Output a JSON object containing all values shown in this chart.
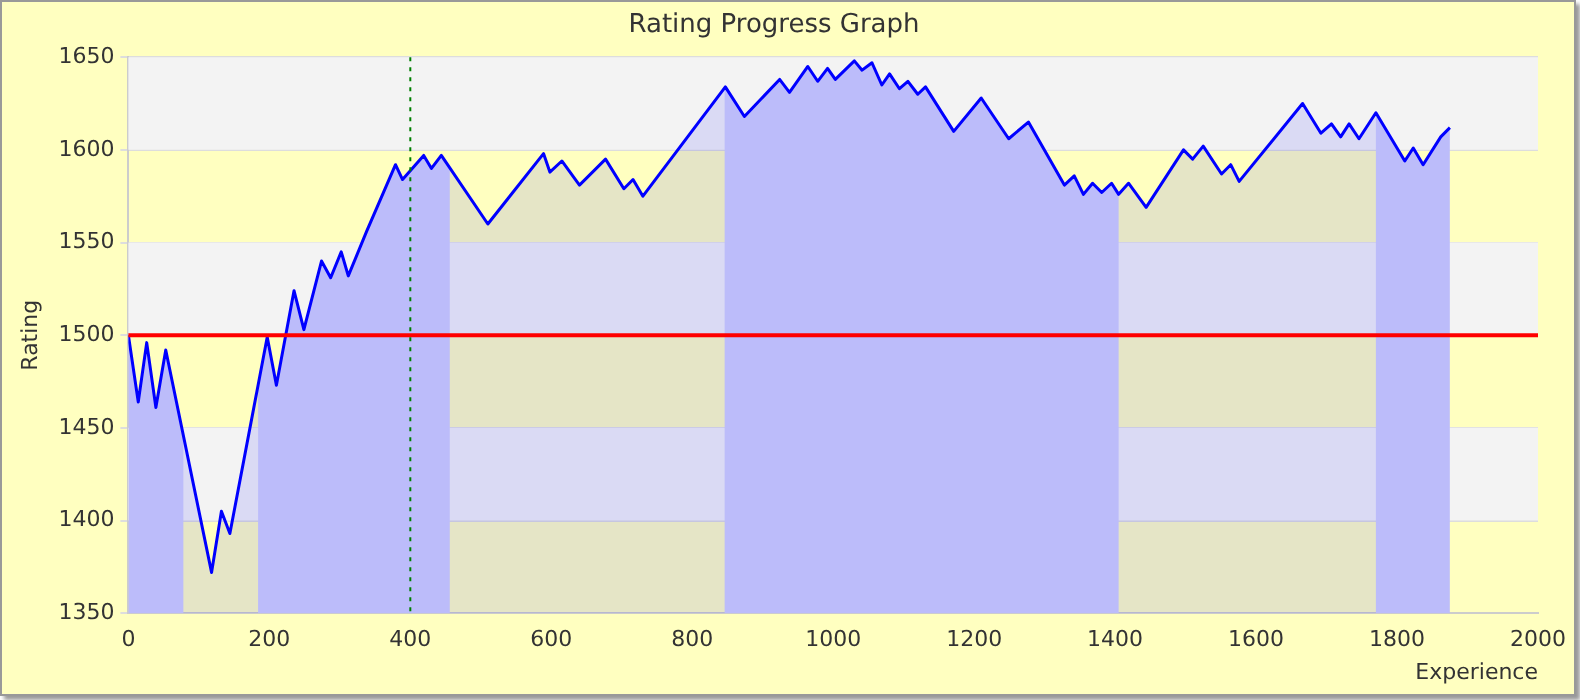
{
  "chart_data": {
    "type": "area",
    "title": "Rating Progress Graph",
    "xlabel": "Experience",
    "ylabel": "Rating",
    "xlim": [
      0,
      2000
    ],
    "xticks": [
      0,
      200,
      400,
      600,
      800,
      1000,
      1200,
      1400,
      1600,
      1800,
      2000
    ],
    "ylim": [
      1350,
      1650
    ],
    "yticks": [
      1350,
      1400,
      1450,
      1500,
      1550,
      1600,
      1650
    ],
    "grid": "y",
    "legend": false,
    "marker": "none",
    "line_style": "solid",
    "series": [
      {
        "color": "#0000ff",
        "x": [
          0,
          14,
          26,
          39,
          53,
          118,
          132,
          144,
          197,
          210,
          235,
          249,
          274,
          287,
          302,
          312,
          338,
          379,
          389,
          419,
          430,
          444,
          510,
          589,
          598,
          615,
          640,
          677,
          703,
          716,
          730,
          847,
          874,
          924,
          938,
          964,
          978,
          992,
          1003,
          1030,
          1041,
          1055,
          1069,
          1080,
          1094,
          1106,
          1120,
          1131,
          1171,
          1210,
          1249,
          1277,
          1328,
          1342,
          1355,
          1368,
          1381,
          1395,
          1405,
          1419,
          1444,
          1497,
          1510,
          1525,
          1551,
          1564,
          1576,
          1666,
          1692,
          1707,
          1720,
          1732,
          1746,
          1770,
          1811,
          1823,
          1837,
          1862,
          1875
        ],
        "values": [
          1500,
          1464,
          1496,
          1461,
          1492,
          1372,
          1405,
          1393,
          1499,
          1473,
          1524,
          1503,
          1540,
          1531,
          1545,
          1532,
          1556,
          1592,
          1584,
          1597,
          1590,
          1597,
          1560,
          1598,
          1588,
          1594,
          1581,
          1595,
          1579,
          1584,
          1575,
          1634,
          1618,
          1638,
          1631,
          1645,
          1637,
          1644,
          1638,
          1648,
          1643,
          1647,
          1635,
          1641,
          1633,
          1637,
          1630,
          1634,
          1610,
          1628,
          1606,
          1615,
          1581,
          1586,
          1576,
          1582,
          1577,
          1582,
          1576,
          1582,
          1569,
          1600,
          1595,
          1602,
          1587,
          1592,
          1583,
          1625,
          1609,
          1614,
          1607,
          1614,
          1606,
          1620,
          1594,
          1601,
          1592,
          1607,
          1612
        ]
      }
    ],
    "bands": [
      {
        "axis": "x",
        "from": 0,
        "to": 78,
        "color": "#d2d2fa"
      },
      {
        "axis": "x",
        "from": 184,
        "to": 456,
        "color": "#d2d2fa"
      },
      {
        "axis": "x",
        "from": 846,
        "to": 1405,
        "color": "#d2d2fa"
      },
      {
        "axis": "x",
        "from": 1770,
        "to": 1875,
        "color": "#d2d2fa"
      }
    ],
    "ref_lines": [
      {
        "axis": "y",
        "value": 1500,
        "color": "#ff0000",
        "line_style": "solid"
      },
      {
        "axis": "x",
        "value": 400,
        "color": "#008000",
        "line_style": "dotted"
      }
    ]
  }
}
